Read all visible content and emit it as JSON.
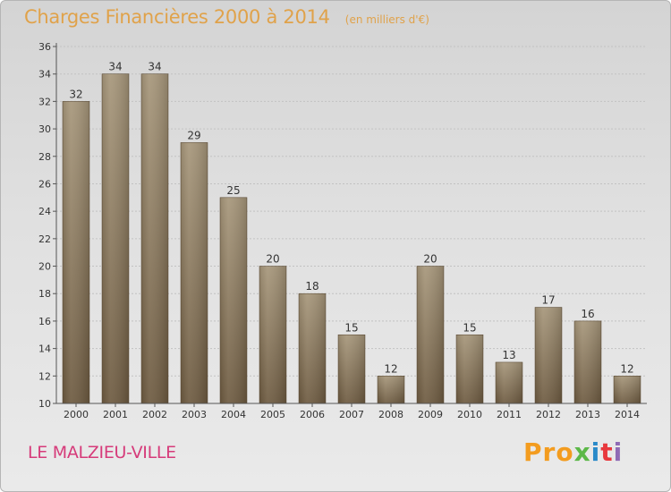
{
  "header": {
    "title": "Charges Financières 2000 à 2014",
    "subtitle": "(en milliers d'€)"
  },
  "footer": {
    "commune": "LE MALZIEU-VILLE",
    "logo": [
      "Pro",
      "x",
      "i",
      "t",
      "i"
    ]
  },
  "colors": {
    "bar_top": "#a6967a",
    "bar_bottom": "#6d5a40",
    "title": "#e0a24a",
    "commune": "#d63b7a"
  },
  "chart_data": {
    "type": "bar",
    "title": "Charges Financières 2000 à 2014",
    "subtitle": "(en milliers d'€)",
    "categories": [
      "2000",
      "2001",
      "2002",
      "2003",
      "2004",
      "2005",
      "2006",
      "2007",
      "2008",
      "2009",
      "2010",
      "2011",
      "2012",
      "2013",
      "2014"
    ],
    "values": [
      32,
      34,
      34,
      29,
      25,
      20,
      18,
      15,
      12,
      20,
      15,
      13,
      17,
      16,
      12
    ],
    "ylim": [
      10,
      36
    ],
    "yticks": [
      10,
      12,
      14,
      16,
      18,
      20,
      22,
      24,
      26,
      28,
      30,
      32,
      34,
      36
    ],
    "grid": true,
    "legend": "none"
  }
}
